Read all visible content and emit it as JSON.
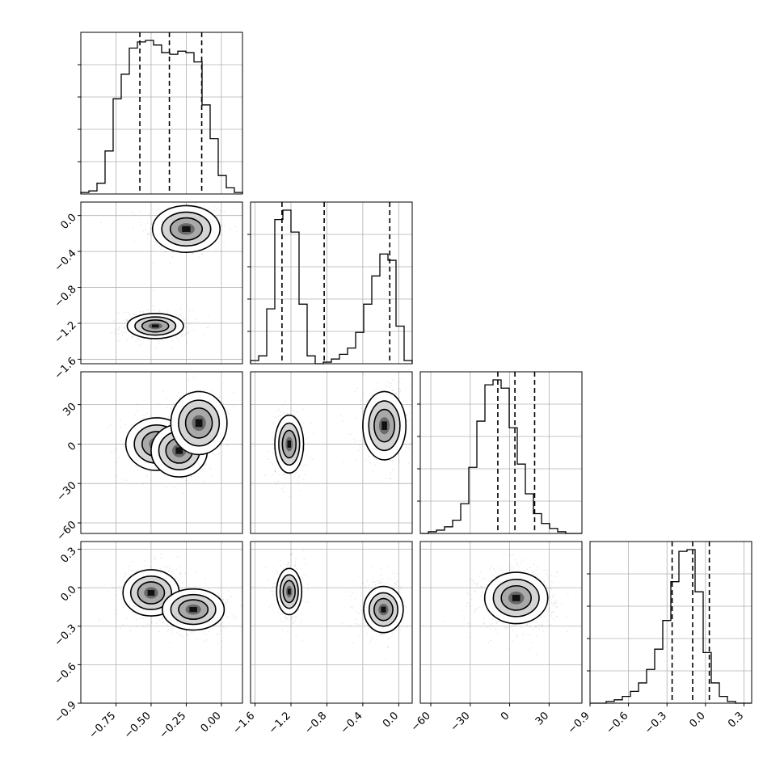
{
  "chart_data": {
    "type": "corner",
    "parameters": [
      {
        "range": [
          -1.0,
          0.15
        ],
        "ticks": [
          -0.75,
          -0.5,
          -0.25,
          0.0
        ],
        "tick_labels": [
          "−0.75",
          "−0.50",
          "−0.25",
          "0.00"
        ],
        "quantiles": [
          -0.58,
          -0.37,
          -0.14
        ],
        "histogram": [
          0.01,
          0.02,
          0.07,
          0.28,
          0.62,
          0.78,
          0.95,
          0.99,
          1.0,
          0.97,
          0.92,
          0.91,
          0.93,
          0.92,
          0.86,
          0.58,
          0.36,
          0.12,
          0.04,
          0.01
        ]
      },
      {
        "range": [
          -1.65,
          0.15
        ],
        "ticks": [
          -1.6,
          -1.2,
          -0.8,
          -0.4,
          0.0
        ],
        "tick_labels": [
          "−1.6",
          "−1.2",
          "−0.8",
          "−0.4",
          "0.0"
        ],
        "quantiles": [
          -1.3,
          -0.83,
          -0.1
        ],
        "histogram": [
          0.02,
          0.05,
          0.35,
          0.92,
          0.98,
          0.84,
          0.38,
          0.05,
          0.0,
          0.01,
          0.03,
          0.06,
          0.1,
          0.2,
          0.38,
          0.56,
          0.7,
          0.66,
          0.24,
          0.02
        ]
      },
      {
        "range": [
          -68,
          55
        ],
        "ticks": [
          -60,
          -30,
          0,
          30
        ],
        "tick_labels": [
          "−60",
          "−30",
          "0",
          "30"
        ],
        "quantiles": [
          -9,
          4,
          19
        ],
        "histogram": [
          0.0,
          0.01,
          0.02,
          0.04,
          0.08,
          0.18,
          0.4,
          0.68,
          0.9,
          0.93,
          0.88,
          0.64,
          0.42,
          0.24,
          0.12,
          0.06,
          0.03,
          0.01,
          0.0,
          0.0
        ]
      },
      {
        "range": [
          -0.9,
          0.36
        ],
        "ticks": [
          -0.9,
          -0.6,
          -0.3,
          0.0,
          0.3
        ],
        "tick_labels": [
          "−0.9",
          "−0.6",
          "−0.3",
          "0.0",
          "0.3"
        ],
        "quantiles": [
          -0.26,
          -0.1,
          0.03
        ],
        "histogram": [
          0.0,
          0.0,
          0.01,
          0.02,
          0.04,
          0.07,
          0.12,
          0.2,
          0.32,
          0.49,
          0.72,
          0.9,
          0.91,
          0.66,
          0.3,
          0.12,
          0.04,
          0.01,
          0.0,
          0.0
        ]
      }
    ],
    "joint_modes": [
      {
        "x": 0,
        "y": 1,
        "blobs": [
          {
            "cx": -0.25,
            "cy": -0.15,
            "sx": 0.12,
            "sy": 0.13,
            "w": 0.5
          },
          {
            "cx": -0.47,
            "cy": -1.23,
            "sx": 0.1,
            "sy": 0.07,
            "w": 0.5
          }
        ]
      },
      {
        "x": 0,
        "y": 2,
        "blobs": [
          {
            "cx": -0.46,
            "cy": 0,
            "sx": 0.11,
            "sy": 10,
            "w": 0.35
          },
          {
            "cx": -0.3,
            "cy": -5,
            "sx": 0.1,
            "sy": 10,
            "w": 0.3
          },
          {
            "cx": -0.16,
            "cy": 16,
            "sx": 0.1,
            "sy": 12,
            "w": 0.35
          }
        ]
      },
      {
        "x": 0,
        "y": 3,
        "blobs": [
          {
            "cx": -0.5,
            "cy": -0.04,
            "sx": 0.1,
            "sy": 0.09,
            "w": 0.5
          },
          {
            "cx": -0.2,
            "cy": -0.17,
            "sx": 0.11,
            "sy": 0.08,
            "w": 0.5
          }
        ]
      },
      {
        "x": 1,
        "y": 2,
        "blobs": [
          {
            "cx": -1.22,
            "cy": 0,
            "sx": 0.08,
            "sy": 11,
            "w": 0.5
          },
          {
            "cx": -0.16,
            "cy": 14,
            "sx": 0.12,
            "sy": 13,
            "w": 0.5
          }
        ]
      },
      {
        "x": 1,
        "y": 3,
        "blobs": [
          {
            "cx": -1.22,
            "cy": -0.03,
            "sx": 0.07,
            "sy": 0.09,
            "w": 0.5
          },
          {
            "cx": -0.17,
            "cy": -0.17,
            "sx": 0.11,
            "sy": 0.09,
            "w": 0.5
          }
        ]
      },
      {
        "x": 2,
        "y": 3,
        "blobs": [
          {
            "cx": 5,
            "cy": -0.08,
            "sx": 12,
            "sy": 0.1,
            "w": 1.0
          }
        ]
      }
    ]
  }
}
